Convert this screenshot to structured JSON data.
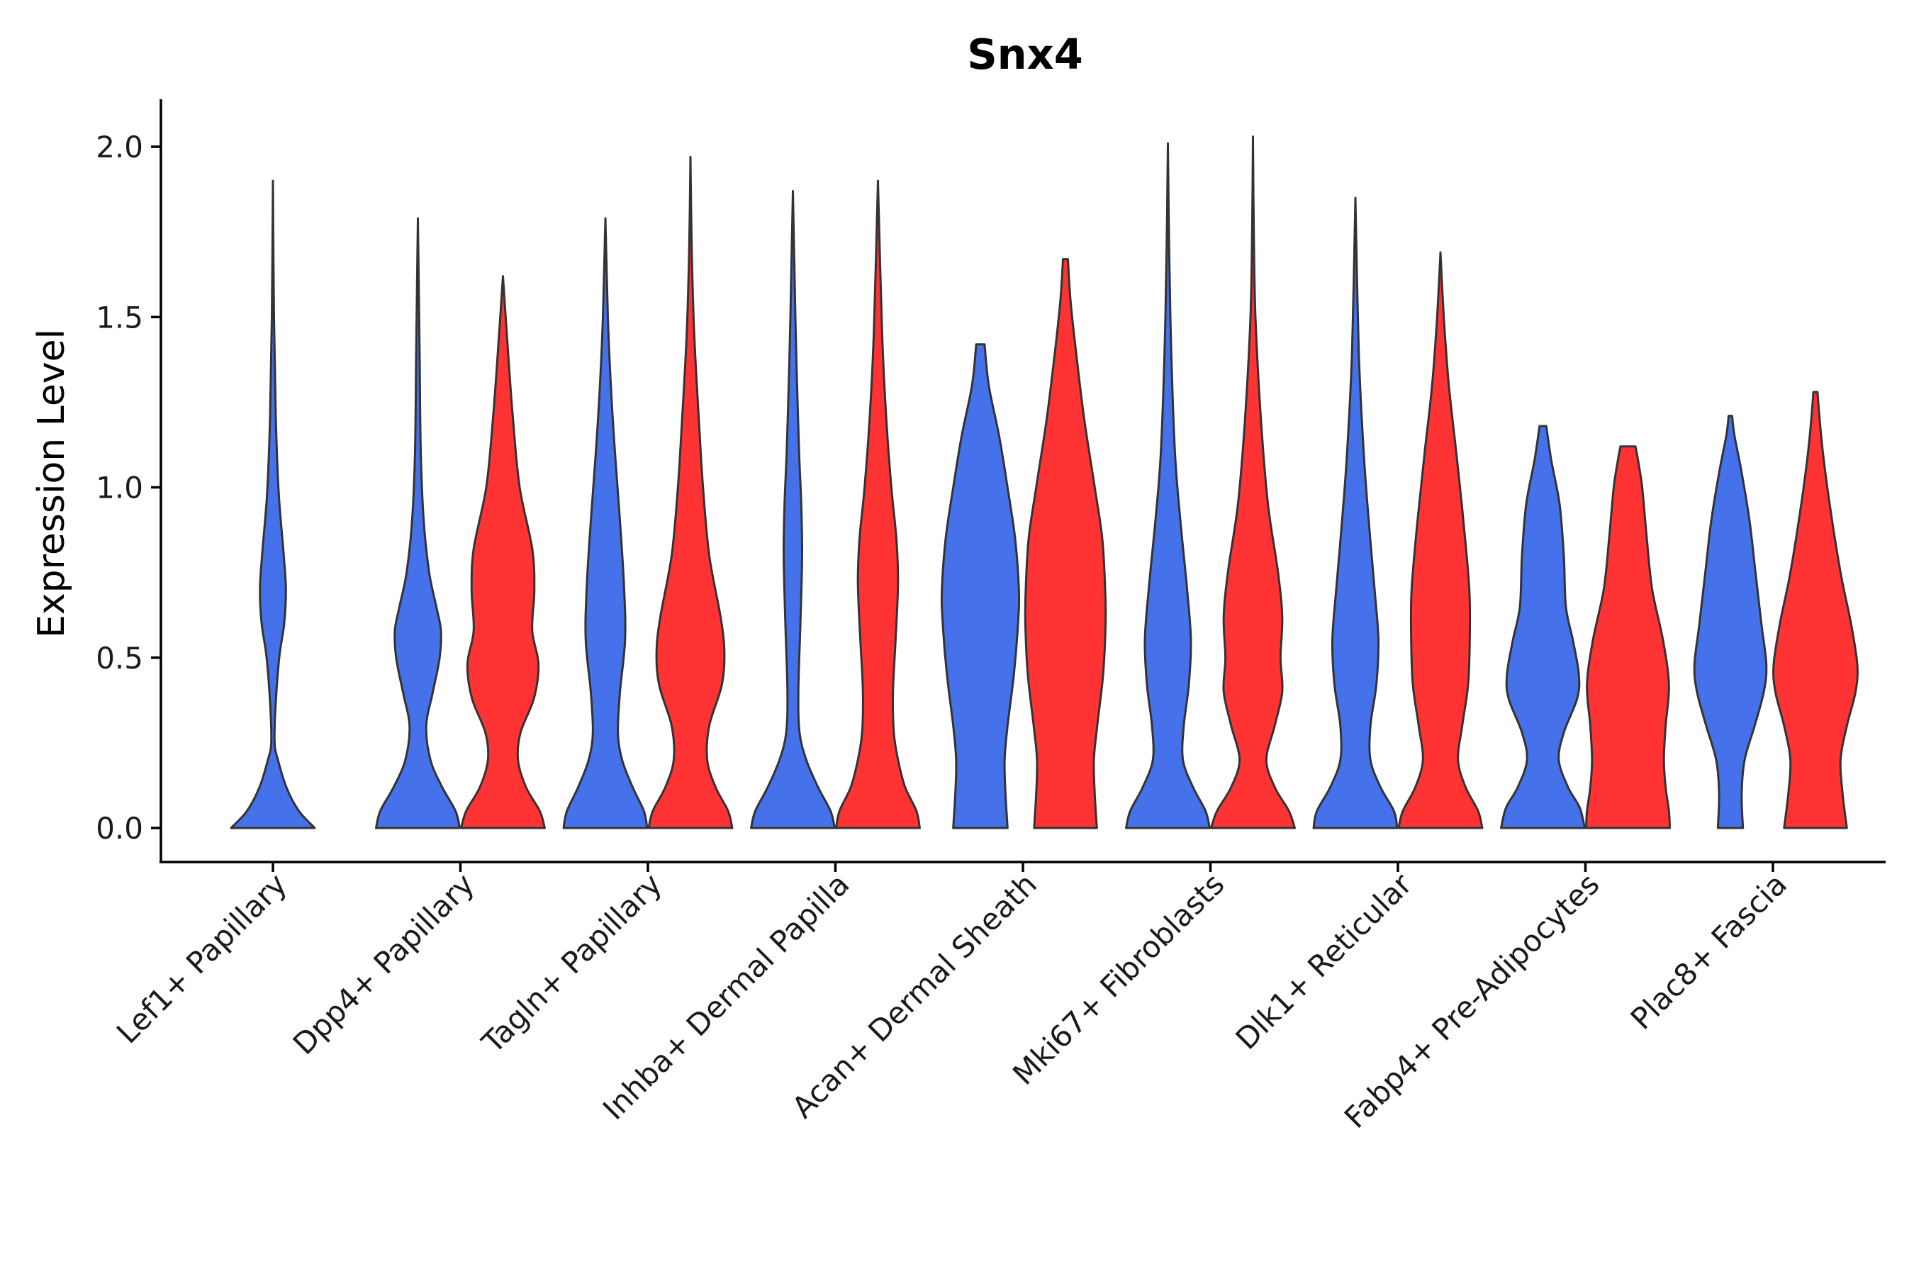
{
  "chart_data": {
    "type": "violin",
    "title": "Snx4",
    "ylabel": "Expression Level",
    "xlabel": "",
    "ylim": [
      -0.1,
      2.13
    ],
    "y_ticks": [
      0.0,
      0.5,
      1.0,
      1.5,
      2.0
    ],
    "y_tick_labels": [
      "0.0",
      "0.5",
      "1.0",
      "1.5",
      "2.0"
    ],
    "colors": {
      "blue": "#4571EB",
      "red": "#FF3333",
      "outline": "#333333"
    },
    "categories": [
      "Lef1+ Papillary",
      "Dpp4+ Papillary",
      "Tagln+ Papillary",
      "Inhba+ Dermal Papilla",
      "Acan+ Dermal Sheath",
      "Mki67+ Fibroblasts",
      "Dlk1+ Reticular",
      "Fabp4+ Pre-Adipocytes",
      "Plac8+ Fascia"
    ],
    "violins": [
      {
        "category": 0,
        "group": "blue",
        "max": 1.9,
        "profile": [
          [
            0.0,
            1.0
          ],
          [
            0.05,
            0.62
          ],
          [
            0.12,
            0.32
          ],
          [
            0.2,
            0.12
          ],
          [
            0.25,
            0.04
          ],
          [
            0.35,
            0.06
          ],
          [
            0.5,
            0.15
          ],
          [
            0.6,
            0.27
          ],
          [
            0.7,
            0.31
          ],
          [
            0.8,
            0.26
          ],
          [
            0.9,
            0.19
          ],
          [
            1.0,
            0.13
          ],
          [
            1.2,
            0.07
          ],
          [
            1.5,
            0.025
          ],
          [
            1.9,
            0.0
          ]
        ]
      },
      {
        "category": 1,
        "group": "blue",
        "max": 1.79,
        "profile": [
          [
            0.0,
            1.0
          ],
          [
            0.05,
            0.9
          ],
          [
            0.12,
            0.58
          ],
          [
            0.2,
            0.3
          ],
          [
            0.3,
            0.2
          ],
          [
            0.4,
            0.36
          ],
          [
            0.5,
            0.52
          ],
          [
            0.58,
            0.55
          ],
          [
            0.65,
            0.44
          ],
          [
            0.75,
            0.27
          ],
          [
            0.9,
            0.14
          ],
          [
            1.1,
            0.07
          ],
          [
            1.4,
            0.04
          ],
          [
            1.79,
            0.0
          ]
        ]
      },
      {
        "category": 1,
        "group": "red",
        "max": 1.62,
        "profile": [
          [
            0.0,
            1.0
          ],
          [
            0.05,
            0.88
          ],
          [
            0.12,
            0.55
          ],
          [
            0.2,
            0.36
          ],
          [
            0.28,
            0.42
          ],
          [
            0.38,
            0.74
          ],
          [
            0.48,
            0.85
          ],
          [
            0.58,
            0.7
          ],
          [
            0.7,
            0.75
          ],
          [
            0.82,
            0.7
          ],
          [
            1.0,
            0.4
          ],
          [
            1.2,
            0.24
          ],
          [
            1.4,
            0.12
          ],
          [
            1.62,
            0.0
          ]
        ]
      },
      {
        "category": 2,
        "group": "blue",
        "max": 1.79,
        "profile": [
          [
            0.0,
            1.0
          ],
          [
            0.05,
            0.92
          ],
          [
            0.12,
            0.65
          ],
          [
            0.2,
            0.4
          ],
          [
            0.28,
            0.3
          ],
          [
            0.4,
            0.35
          ],
          [
            0.55,
            0.47
          ],
          [
            0.7,
            0.45
          ],
          [
            0.9,
            0.35
          ],
          [
            1.1,
            0.23
          ],
          [
            1.3,
            0.13
          ],
          [
            1.5,
            0.06
          ],
          [
            1.79,
            0.0
          ]
        ]
      },
      {
        "category": 2,
        "group": "red",
        "max": 1.97,
        "profile": [
          [
            0.0,
            1.0
          ],
          [
            0.05,
            0.9
          ],
          [
            0.12,
            0.6
          ],
          [
            0.2,
            0.4
          ],
          [
            0.3,
            0.45
          ],
          [
            0.42,
            0.75
          ],
          [
            0.52,
            0.81
          ],
          [
            0.62,
            0.72
          ],
          [
            0.8,
            0.45
          ],
          [
            1.0,
            0.3
          ],
          [
            1.2,
            0.2
          ],
          [
            1.45,
            0.09
          ],
          [
            1.7,
            0.03
          ],
          [
            1.97,
            0.0
          ]
        ]
      },
      {
        "category": 3,
        "group": "blue",
        "max": 1.87,
        "profile": [
          [
            0.0,
            1.0
          ],
          [
            0.05,
            0.9
          ],
          [
            0.12,
            0.6
          ],
          [
            0.2,
            0.32
          ],
          [
            0.28,
            0.16
          ],
          [
            0.4,
            0.13
          ],
          [
            0.6,
            0.18
          ],
          [
            0.8,
            0.22
          ],
          [
            0.95,
            0.2
          ],
          [
            1.1,
            0.15
          ],
          [
            1.3,
            0.1
          ],
          [
            1.5,
            0.06
          ],
          [
            1.87,
            0.0
          ]
        ]
      },
      {
        "category": 3,
        "group": "red",
        "max": 1.9,
        "profile": [
          [
            0.0,
            1.0
          ],
          [
            0.05,
            0.92
          ],
          [
            0.12,
            0.65
          ],
          [
            0.2,
            0.48
          ],
          [
            0.28,
            0.38
          ],
          [
            0.4,
            0.36
          ],
          [
            0.55,
            0.42
          ],
          [
            0.72,
            0.48
          ],
          [
            0.85,
            0.44
          ],
          [
            1.0,
            0.32
          ],
          [
            1.2,
            0.2
          ],
          [
            1.45,
            0.1
          ],
          [
            1.9,
            0.0
          ]
        ]
      },
      {
        "category": 4,
        "group": "blue",
        "max": 1.42,
        "profile": [
          [
            0.0,
            0.65
          ],
          [
            0.1,
            0.6
          ],
          [
            0.2,
            0.58
          ],
          [
            0.3,
            0.65
          ],
          [
            0.45,
            0.8
          ],
          [
            0.6,
            0.9
          ],
          [
            0.7,
            0.92
          ],
          [
            0.85,
            0.83
          ],
          [
            1.0,
            0.65
          ],
          [
            1.15,
            0.45
          ],
          [
            1.3,
            0.2
          ],
          [
            1.42,
            0.1
          ]
        ]
      },
      {
        "category": 4,
        "group": "red",
        "max": 1.67,
        "profile": [
          [
            0.0,
            0.75
          ],
          [
            0.1,
            0.7
          ],
          [
            0.2,
            0.68
          ],
          [
            0.3,
            0.76
          ],
          [
            0.45,
            0.9
          ],
          [
            0.6,
            0.96
          ],
          [
            0.7,
            0.95
          ],
          [
            0.85,
            0.88
          ],
          [
            1.0,
            0.7
          ],
          [
            1.2,
            0.45
          ],
          [
            1.4,
            0.25
          ],
          [
            1.55,
            0.12
          ],
          [
            1.67,
            0.06
          ]
        ]
      },
      {
        "category": 5,
        "group": "blue",
        "max": 2.01,
        "profile": [
          [
            0.0,
            1.0
          ],
          [
            0.05,
            0.9
          ],
          [
            0.12,
            0.6
          ],
          [
            0.2,
            0.36
          ],
          [
            0.3,
            0.38
          ],
          [
            0.42,
            0.5
          ],
          [
            0.55,
            0.55
          ],
          [
            0.7,
            0.46
          ],
          [
            0.9,
            0.3
          ],
          [
            1.1,
            0.17
          ],
          [
            1.4,
            0.08
          ],
          [
            1.7,
            0.03
          ],
          [
            2.01,
            0.0
          ]
        ]
      },
      {
        "category": 5,
        "group": "red",
        "max": 2.03,
        "profile": [
          [
            0.0,
            1.0
          ],
          [
            0.05,
            0.86
          ],
          [
            0.12,
            0.52
          ],
          [
            0.2,
            0.32
          ],
          [
            0.3,
            0.52
          ],
          [
            0.4,
            0.7
          ],
          [
            0.5,
            0.66
          ],
          [
            0.62,
            0.7
          ],
          [
            0.75,
            0.6
          ],
          [
            0.95,
            0.36
          ],
          [
            1.2,
            0.19
          ],
          [
            1.5,
            0.06
          ],
          [
            1.75,
            0.02
          ],
          [
            2.03,
            0.0
          ]
        ]
      },
      {
        "category": 6,
        "group": "blue",
        "max": 1.85,
        "profile": [
          [
            0.0,
            1.0
          ],
          [
            0.05,
            0.92
          ],
          [
            0.12,
            0.6
          ],
          [
            0.2,
            0.36
          ],
          [
            0.3,
            0.36
          ],
          [
            0.42,
            0.5
          ],
          [
            0.55,
            0.55
          ],
          [
            0.7,
            0.46
          ],
          [
            0.9,
            0.32
          ],
          [
            1.1,
            0.2
          ],
          [
            1.4,
            0.08
          ],
          [
            1.85,
            0.0
          ]
        ]
      },
      {
        "category": 6,
        "group": "red",
        "max": 1.69,
        "profile": [
          [
            0.0,
            1.0
          ],
          [
            0.05,
            0.9
          ],
          [
            0.12,
            0.6
          ],
          [
            0.2,
            0.42
          ],
          [
            0.3,
            0.52
          ],
          [
            0.42,
            0.66
          ],
          [
            0.55,
            0.7
          ],
          [
            0.7,
            0.69
          ],
          [
            0.9,
            0.55
          ],
          [
            1.1,
            0.38
          ],
          [
            1.3,
            0.2
          ],
          [
            1.5,
            0.08
          ],
          [
            1.69,
            0.0
          ]
        ]
      },
      {
        "category": 7,
        "group": "blue",
        "max": 1.18,
        "profile": [
          [
            0.0,
            1.0
          ],
          [
            0.06,
            0.88
          ],
          [
            0.12,
            0.6
          ],
          [
            0.2,
            0.38
          ],
          [
            0.28,
            0.5
          ],
          [
            0.38,
            0.82
          ],
          [
            0.45,
            0.86
          ],
          [
            0.55,
            0.72
          ],
          [
            0.65,
            0.55
          ],
          [
            0.8,
            0.5
          ],
          [
            0.95,
            0.4
          ],
          [
            1.08,
            0.2
          ],
          [
            1.18,
            0.08
          ]
        ]
      },
      {
        "category": 7,
        "group": "red",
        "max": 1.12,
        "profile": [
          [
            0.0,
            1.0
          ],
          [
            0.05,
            0.98
          ],
          [
            0.12,
            0.9
          ],
          [
            0.2,
            0.86
          ],
          [
            0.3,
            0.9
          ],
          [
            0.42,
            0.98
          ],
          [
            0.55,
            0.84
          ],
          [
            0.7,
            0.58
          ],
          [
            0.85,
            0.45
          ],
          [
            1.0,
            0.34
          ],
          [
            1.08,
            0.24
          ],
          [
            1.12,
            0.18
          ]
        ]
      },
      {
        "category": 8,
        "group": "blue",
        "max": 1.21,
        "profile": [
          [
            0.0,
            0.3
          ],
          [
            0.1,
            0.27
          ],
          [
            0.2,
            0.34
          ],
          [
            0.3,
            0.58
          ],
          [
            0.4,
            0.8
          ],
          [
            0.48,
            0.86
          ],
          [
            0.6,
            0.74
          ],
          [
            0.75,
            0.6
          ],
          [
            0.9,
            0.46
          ],
          [
            1.05,
            0.26
          ],
          [
            1.15,
            0.1
          ],
          [
            1.21,
            0.04
          ]
        ]
      },
      {
        "category": 8,
        "group": "red",
        "max": 1.28,
        "profile": [
          [
            0.0,
            0.75
          ],
          [
            0.1,
            0.65
          ],
          [
            0.2,
            0.6
          ],
          [
            0.3,
            0.75
          ],
          [
            0.4,
            0.96
          ],
          [
            0.48,
            1.0
          ],
          [
            0.6,
            0.85
          ],
          [
            0.75,
            0.6
          ],
          [
            0.95,
            0.34
          ],
          [
            1.1,
            0.18
          ],
          [
            1.2,
            0.1
          ],
          [
            1.28,
            0.05
          ]
        ]
      }
    ]
  }
}
